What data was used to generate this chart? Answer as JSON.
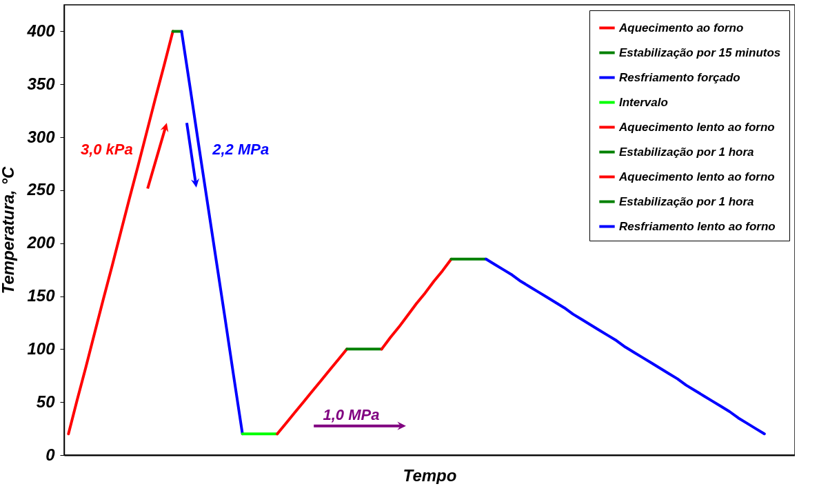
{
  "chart_data": {
    "type": "line",
    "xlabel": "Tempo",
    "ylabel": "Temperatura, °C",
    "ylim": [
      0,
      425
    ],
    "yticks": [
      0,
      50,
      100,
      150,
      200,
      250,
      300,
      350,
      400
    ],
    "grid": false,
    "legend": "top right",
    "marker": "none",
    "line_style": "solid",
    "categories": [
      null,
      null,
      null,
      null,
      null,
      null,
      null,
      null,
      null,
      null,
      null,
      null,
      null,
      null,
      null,
      null,
      null,
      null,
      null,
      null,
      null,
      null,
      null,
      null,
      null,
      null,
      null,
      null,
      null,
      null,
      null,
      null,
      null,
      null,
      null,
      null,
      null,
      null,
      null,
      null,
      null,
      null,
      null,
      null,
      null,
      null,
      null,
      null,
      null,
      null,
      null,
      null,
      null,
      null,
      null,
      null,
      null,
      null,
      null,
      null,
      null,
      null,
      null,
      null,
      null,
      null,
      null,
      null,
      null,
      null,
      null,
      null,
      null,
      null,
      null,
      null,
      null,
      null,
      null,
      null,
      null,
      null,
      null,
      null
    ],
    "series": [
      {
        "name": "Aquecimento ao forno",
        "color": "#ff0000",
        "values": [
          20,
          52,
          83,
          115,
          147,
          178,
          210,
          242,
          273,
          305,
          337,
          368,
          400,
          null,
          null,
          null,
          null,
          null,
          null,
          null,
          null,
          null,
          null,
          null,
          null,
          null,
          null,
          null,
          null,
          null,
          null,
          null,
          null,
          null,
          null,
          null,
          null,
          null,
          null,
          null,
          null,
          null,
          null,
          null,
          null,
          null,
          null,
          null,
          null,
          null,
          null,
          null,
          null,
          null,
          null,
          null,
          null,
          null,
          null,
          null,
          null,
          null,
          null,
          null,
          null,
          null,
          null,
          null,
          null,
          null,
          null,
          null,
          null,
          null,
          null,
          null,
          null,
          null,
          null,
          null,
          null,
          null,
          null,
          null
        ]
      },
      {
        "name": "Estabilização por 15 minutos",
        "color": "#008000",
        "values": [
          null,
          null,
          null,
          null,
          null,
          null,
          null,
          null,
          null,
          null,
          null,
          null,
          400,
          400,
          null,
          null,
          null,
          null,
          null,
          null,
          null,
          null,
          null,
          null,
          null,
          null,
          null,
          null,
          null,
          null,
          null,
          null,
          null,
          null,
          null,
          null,
          null,
          null,
          null,
          null,
          null,
          null,
          null,
          null,
          null,
          null,
          null,
          null,
          null,
          null,
          null,
          null,
          null,
          null,
          null,
          null,
          null,
          null,
          null,
          null,
          null,
          null,
          null,
          null,
          null,
          null,
          null,
          null,
          null,
          null,
          null,
          null,
          null,
          null,
          null,
          null,
          null,
          null,
          null,
          null,
          null,
          null,
          null,
          null
        ]
      },
      {
        "name": "Resfriamento forçado",
        "color": "#0000ff",
        "values": [
          null,
          null,
          null,
          null,
          null,
          null,
          null,
          null,
          null,
          null,
          null,
          null,
          null,
          400,
          346,
          291,
          237,
          183,
          129,
          74,
          20,
          null,
          null,
          null,
          null,
          null,
          null,
          null,
          null,
          null,
          null,
          null,
          null,
          null,
          null,
          null,
          null,
          null,
          null,
          null,
          null,
          null,
          null,
          null,
          null,
          null,
          null,
          null,
          null,
          null,
          null,
          null,
          null,
          null,
          null,
          null,
          null,
          null,
          null,
          null,
          null,
          null,
          null,
          null,
          null,
          null,
          null,
          null,
          null,
          null,
          null,
          null,
          null,
          null,
          null,
          null,
          null,
          null,
          null,
          null,
          null,
          null,
          null,
          null
        ]
      },
      {
        "name": "Intervalo",
        "color": "#00ff00",
        "values": [
          null,
          null,
          null,
          null,
          null,
          null,
          null,
          null,
          null,
          null,
          null,
          null,
          null,
          null,
          null,
          null,
          null,
          null,
          null,
          null,
          20,
          20,
          20,
          20,
          20,
          null,
          null,
          null,
          null,
          null,
          null,
          null,
          null,
          null,
          null,
          null,
          null,
          null,
          null,
          null,
          null,
          null,
          null,
          null,
          null,
          null,
          null,
          null,
          null,
          null,
          null,
          null,
          null,
          null,
          null,
          null,
          null,
          null,
          null,
          null,
          null,
          null,
          null,
          null,
          null,
          null,
          null,
          null,
          null,
          null,
          null,
          null,
          null,
          null,
          null,
          null,
          null,
          null,
          null,
          null,
          null,
          null,
          null,
          null
        ]
      },
      {
        "name": "Aquecimento lento ao forno",
        "color": "#ff0000",
        "values": [
          null,
          null,
          null,
          null,
          null,
          null,
          null,
          null,
          null,
          null,
          null,
          null,
          null,
          null,
          null,
          null,
          null,
          null,
          null,
          null,
          null,
          null,
          null,
          null,
          20,
          30,
          40,
          50,
          60,
          70,
          80,
          90,
          100,
          null,
          null,
          null,
          null,
          null,
          null,
          null,
          null,
          null,
          null,
          null,
          null,
          null,
          null,
          null,
          null,
          null,
          null,
          null,
          null,
          null,
          null,
          null,
          null,
          null,
          null,
          null,
          null,
          null,
          null,
          null,
          null,
          null,
          null,
          null,
          null,
          null,
          null,
          null,
          null,
          null,
          null,
          null,
          null,
          null,
          null,
          null,
          null,
          null,
          null,
          null
        ]
      },
      {
        "name": "Estabilização por 1 hora",
        "color": "#008000",
        "values": [
          null,
          null,
          null,
          null,
          null,
          null,
          null,
          null,
          null,
          null,
          null,
          null,
          null,
          null,
          null,
          null,
          null,
          null,
          null,
          null,
          null,
          null,
          null,
          null,
          null,
          null,
          null,
          null,
          null,
          null,
          null,
          null,
          100,
          100,
          100,
          100,
          100,
          null,
          null,
          null,
          null,
          null,
          null,
          null,
          null,
          null,
          null,
          null,
          null,
          null,
          null,
          null,
          null,
          null,
          null,
          null,
          null,
          null,
          null,
          null,
          null,
          null,
          null,
          null,
          null,
          null,
          null,
          null,
          null,
          null,
          null,
          null,
          null,
          null,
          null,
          null,
          null,
          null,
          null,
          null,
          null,
          null,
          null,
          null
        ]
      },
      {
        "name": "Aquecimento lento ao forno",
        "color": "#ff0000",
        "values": [
          null,
          null,
          null,
          null,
          null,
          null,
          null,
          null,
          null,
          null,
          null,
          null,
          null,
          null,
          null,
          null,
          null,
          null,
          null,
          null,
          null,
          null,
          null,
          null,
          null,
          null,
          null,
          null,
          null,
          null,
          null,
          null,
          null,
          null,
          null,
          null,
          100,
          111,
          121,
          132,
          143,
          153,
          164,
          174,
          185,
          null,
          null,
          null,
          null,
          null,
          null,
          null,
          null,
          null,
          null,
          null,
          null,
          null,
          null,
          null,
          null,
          null,
          null,
          null,
          null,
          null,
          null,
          null,
          null,
          null,
          null,
          null,
          null,
          null,
          null,
          null,
          null,
          null,
          null,
          null,
          null,
          null,
          null,
          null
        ]
      },
      {
        "name": "Estabilização por 1 hora",
        "color": "#008000",
        "values": [
          null,
          null,
          null,
          null,
          null,
          null,
          null,
          null,
          null,
          null,
          null,
          null,
          null,
          null,
          null,
          null,
          null,
          null,
          null,
          null,
          null,
          null,
          null,
          null,
          null,
          null,
          null,
          null,
          null,
          null,
          null,
          null,
          null,
          null,
          null,
          null,
          null,
          null,
          null,
          null,
          null,
          null,
          null,
          null,
          185,
          185,
          185,
          185,
          185,
          null,
          null,
          null,
          null,
          null,
          null,
          null,
          null,
          null,
          null,
          null,
          null,
          null,
          null,
          null,
          null,
          null,
          null,
          null,
          null,
          null,
          null,
          null,
          null,
          null,
          null,
          null,
          null,
          null,
          null,
          null,
          null,
          null,
          null,
          null
        ]
      },
      {
        "name": "Resfriamento lento ao forno",
        "color": "#0000ff",
        "values": [
          null,
          null,
          null,
          null,
          null,
          null,
          null,
          null,
          null,
          null,
          null,
          null,
          null,
          null,
          null,
          null,
          null,
          null,
          null,
          null,
          null,
          null,
          null,
          null,
          null,
          null,
          null,
          null,
          null,
          null,
          null,
          null,
          null,
          null,
          null,
          null,
          null,
          null,
          null,
          null,
          null,
          null,
          null,
          null,
          null,
          null,
          null,
          null,
          185,
          180,
          175,
          170,
          164,
          159,
          154,
          149,
          144,
          139,
          133,
          128,
          123,
          118,
          113,
          108,
          102,
          97,
          92,
          87,
          82,
          77,
          72,
          66,
          61,
          56,
          51,
          46,
          41,
          35,
          30,
          25,
          20,
          null,
          null,
          null
        ]
      }
    ],
    "annotations": [
      "3,0 kPa",
      "2,2 MPa",
      "1,0 MPa"
    ]
  }
}
